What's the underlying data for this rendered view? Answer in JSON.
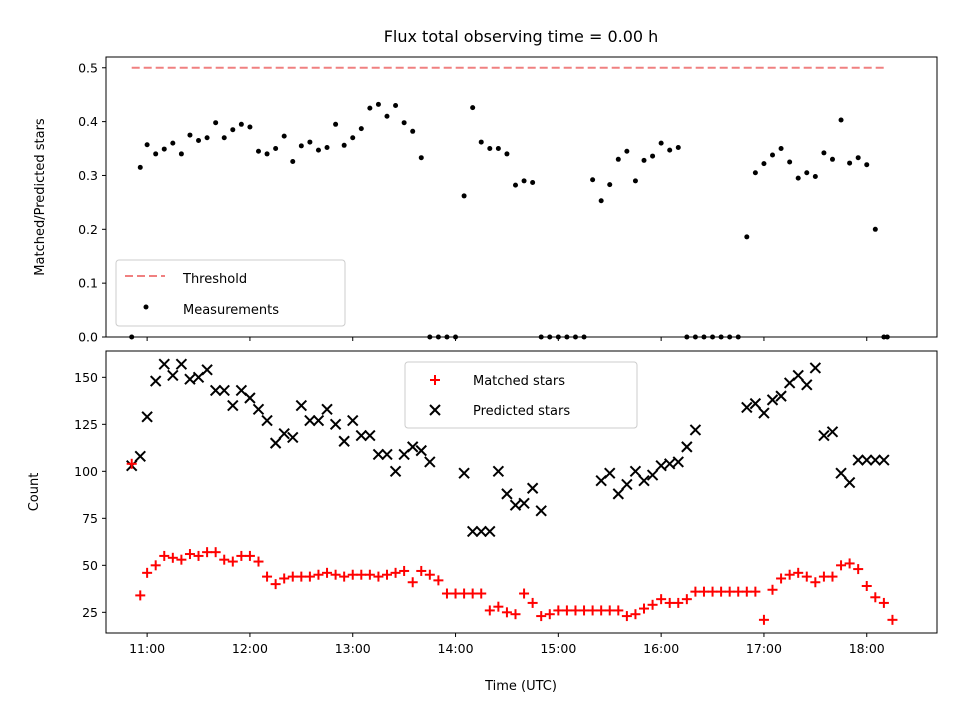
{
  "title": "Flux total observing time = 0.00 h",
  "chart_data": [
    {
      "type": "scatter",
      "ylabel": "Matched/Predicted stars",
      "xlabel": "",
      "xlim": [
        "10:36",
        "18:41"
      ],
      "ylim": [
        0,
        0.52
      ],
      "yticks": [
        "0.0",
        "0.1",
        "0.2",
        "0.3",
        "0.4",
        "0.5"
      ],
      "grid": false,
      "legend_position": "lower-left",
      "threshold": {
        "name": "Threshold",
        "color": "#f08080",
        "style": "dashed",
        "x": [
          "10:51",
          "18:12"
        ],
        "y": 0.5
      },
      "measurements": {
        "name": "Measurements",
        "color": "#000000",
        "x": [
          "10:51",
          "10:56",
          "11:00",
          "11:05",
          "11:10",
          "11:15",
          "11:20",
          "11:25",
          "11:30",
          "11:35",
          "11:40",
          "11:45",
          "11:50",
          "11:55",
          "12:00",
          "12:05",
          "12:10",
          "12:15",
          "12:20",
          "12:25",
          "12:30",
          "12:35",
          "12:40",
          "12:45",
          "12:50",
          "12:55",
          "13:00",
          "13:05",
          "13:10",
          "13:15",
          "13:20",
          "13:25",
          "13:30",
          "13:35",
          "13:40",
          "13:45",
          "13:50",
          "13:55",
          "14:00",
          "14:05",
          "14:10",
          "14:15",
          "14:20",
          "14:25",
          "14:30",
          "14:35",
          "14:40",
          "14:45",
          "14:50",
          "14:55",
          "15:00",
          "15:05",
          "15:10",
          "15:15",
          "15:20",
          "15:25",
          "15:30",
          "15:35",
          "15:40",
          "15:45",
          "15:50",
          "15:55",
          "16:00",
          "16:05",
          "16:10",
          "16:15",
          "16:20",
          "16:25",
          "16:30",
          "16:35",
          "16:40",
          "16:45",
          "16:50",
          "16:55",
          "17:00",
          "17:05",
          "17:10",
          "17:15",
          "17:20",
          "17:25",
          "17:30",
          "17:35",
          "17:40",
          "17:45",
          "17:50",
          "17:55",
          "18:00",
          "18:05",
          "18:10",
          "18:12"
        ],
        "y": [
          0.0,
          0.315,
          0.357,
          0.34,
          0.349,
          0.36,
          0.34,
          0.375,
          0.365,
          0.37,
          0.398,
          0.37,
          0.385,
          0.395,
          0.39,
          0.345,
          0.34,
          0.35,
          0.373,
          0.326,
          0.355,
          0.362,
          0.347,
          0.352,
          0.395,
          0.356,
          0.37,
          0.387,
          0.425,
          0.432,
          0.41,
          0.43,
          0.398,
          0.382,
          0.333,
          0.0,
          0.0,
          0.0,
          0.0,
          0.262,
          0.426,
          0.362,
          0.35,
          0.35,
          0.34,
          0.282,
          0.29,
          0.287,
          0.0,
          0.0,
          0.0,
          0.0,
          0.0,
          0.0,
          0.292,
          0.253,
          0.283,
          0.33,
          0.345,
          0.29,
          0.328,
          0.336,
          0.36,
          0.347,
          0.352,
          0.0,
          0.0,
          0.0,
          0.0,
          0.0,
          0.0,
          0.0,
          0.186,
          0.305,
          0.322,
          0.338,
          0.35,
          0.325,
          0.295,
          0.305,
          0.298,
          0.342,
          0.33,
          0.403,
          0.323,
          0.333,
          0.32,
          0.2,
          0.0,
          0.0
        ]
      }
    },
    {
      "type": "scatter",
      "ylabel": "Count",
      "xlabel": "Time (UTC)",
      "xlim": [
        "10:36",
        "18:41"
      ],
      "ylim": [
        14,
        164
      ],
      "yticks": [
        "25",
        "50",
        "75",
        "100",
        "125",
        "150"
      ],
      "xticks": [
        "11:00",
        "12:00",
        "13:00",
        "14:00",
        "15:00",
        "16:00",
        "17:00",
        "18:00"
      ],
      "grid": false,
      "legend_position": "top-center",
      "series": [
        {
          "name": "Matched stars",
          "marker": "+",
          "color": "#ff0000",
          "x": [
            "10:51",
            "10:56",
            "11:00",
            "11:05",
            "11:10",
            "11:15",
            "11:20",
            "11:25",
            "11:30",
            "11:35",
            "11:40",
            "11:45",
            "11:50",
            "11:55",
            "12:00",
            "12:05",
            "12:10",
            "12:15",
            "12:20",
            "12:25",
            "12:30",
            "12:35",
            "12:40",
            "12:45",
            "12:50",
            "12:55",
            "13:00",
            "13:05",
            "13:10",
            "13:15",
            "13:20",
            "13:25",
            "13:30",
            "13:35",
            "13:40",
            "13:45",
            "13:50",
            "13:55",
            "14:00",
            "14:05",
            "14:10",
            "14:15",
            "14:20",
            "14:25",
            "14:30",
            "14:35",
            "14:40",
            "14:45",
            "14:50",
            "14:55",
            "15:00",
            "15:05",
            "15:10",
            "15:15",
            "15:20",
            "15:25",
            "15:30",
            "15:35",
            "15:40",
            "15:45",
            "15:50",
            "15:55",
            "16:00",
            "16:05",
            "16:10",
            "16:15",
            "16:20",
            "16:25",
            "16:30",
            "16:35",
            "16:40",
            "16:45",
            "16:50",
            "16:55",
            "17:00",
            "17:05",
            "17:10",
            "17:15",
            "17:20",
            "17:25",
            "17:30",
            "17:35",
            "17:40",
            "17:45",
            "17:50",
            "17:55",
            "18:00",
            "18:05",
            "18:10",
            "18:15"
          ],
          "y": [
            104,
            34,
            46,
            50,
            55,
            54,
            53,
            56,
            55,
            57,
            57,
            53,
            52,
            55,
            55,
            52,
            44,
            40,
            43,
            44,
            44,
            44,
            45,
            46,
            45,
            44,
            45,
            45,
            45,
            44,
            45,
            46,
            47,
            41,
            47,
            45,
            42,
            35,
            35,
            35,
            35,
            35,
            26,
            28,
            25,
            24,
            35,
            30,
            23,
            24,
            26,
            26,
            26,
            26,
            26,
            26,
            26,
            26,
            23,
            24,
            27,
            29,
            32,
            30,
            30,
            32,
            36,
            36,
            36,
            36,
            36,
            36,
            36,
            36,
            21,
            37,
            43,
            45,
            46,
            44,
            41,
            44,
            44,
            50,
            51,
            48,
            39,
            33,
            30,
            21
          ]
        },
        {
          "name": "Predicted stars",
          "marker": "x",
          "color": "#000000",
          "x": [
            "10:51",
            "10:56",
            "11:00",
            "11:05",
            "11:10",
            "11:15",
            "11:20",
            "11:25",
            "11:30",
            "11:35",
            "11:40",
            "11:45",
            "11:50",
            "11:55",
            "12:00",
            "12:05",
            "12:10",
            "12:15",
            "12:20",
            "12:25",
            "12:30",
            "12:35",
            "12:40",
            "12:45",
            "12:50",
            "12:55",
            "13:00",
            "13:05",
            "13:10",
            "13:15",
            "13:20",
            "13:25",
            "13:30",
            "13:35",
            "13:40",
            "13:45",
            "14:05",
            "14:10",
            "14:15",
            "14:20",
            "14:25",
            "14:30",
            "14:35",
            "14:40",
            "14:45",
            "14:50",
            "15:25",
            "15:30",
            "15:35",
            "15:40",
            "15:45",
            "15:50",
            "15:55",
            "16:00",
            "16:05",
            "16:10",
            "16:15",
            "16:20",
            "16:50",
            "16:55",
            "17:00",
            "17:05",
            "17:10",
            "17:15",
            "17:20",
            "17:25",
            "17:30",
            "17:35",
            "17:40",
            "17:45",
            "17:50",
            "17:55",
            "18:00",
            "18:05",
            "18:10"
          ],
          "y": [
            103,
            108,
            129,
            148,
            157,
            151,
            157,
            149,
            150,
            154,
            143,
            143,
            135,
            143,
            139,
            133,
            127,
            115,
            120,
            118,
            135,
            127,
            127,
            133,
            125,
            116,
            127,
            119,
            119,
            109,
            109,
            100,
            109,
            113,
            111,
            105,
            99,
            68,
            68,
            68,
            100,
            88,
            82,
            83,
            91,
            79,
            95,
            99,
            88,
            93,
            100,
            95,
            98,
            103,
            104,
            105,
            113,
            122,
            134,
            136,
            131,
            138,
            140,
            147,
            151,
            146,
            155,
            119,
            121,
            99,
            94,
            106,
            106,
            106,
            106
          ]
        }
      ]
    }
  ]
}
